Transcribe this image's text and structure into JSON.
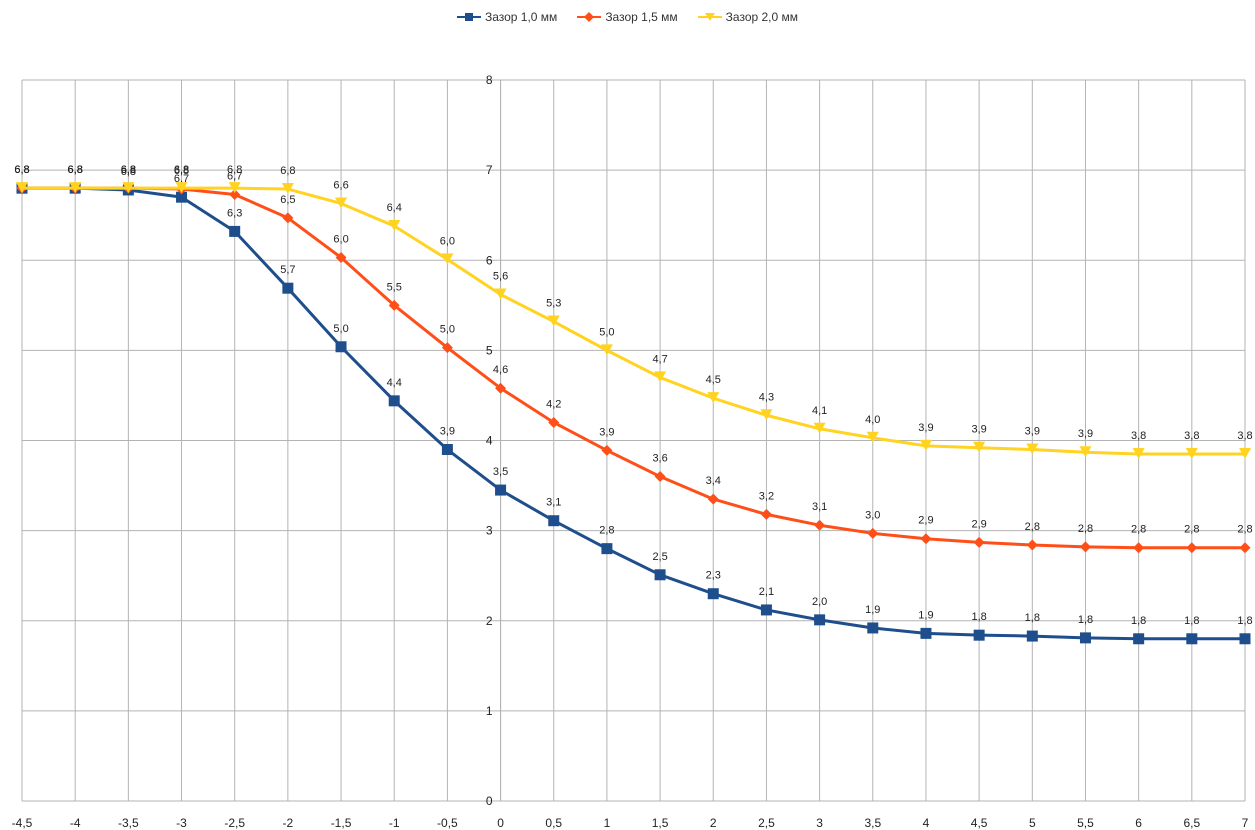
{
  "chart_data": {
    "type": "line",
    "x": [
      -4.5,
      -4,
      -3.5,
      -3,
      -2.5,
      -2,
      -1.5,
      -1,
      -0.5,
      0,
      0.5,
      1,
      1.5,
      2,
      2.5,
      3,
      3.5,
      4,
      4.5,
      5,
      5.5,
      6,
      6.5,
      7
    ],
    "x_tick_labels": [
      "-4,5",
      "-4",
      "-3,5",
      "-3",
      "-2,5",
      "-2",
      "-1,5",
      "-1",
      "-0,5",
      "0",
      "0,5",
      "1",
      "1,5",
      "2",
      "2,5",
      "3",
      "3,5",
      "4",
      "4,5",
      "5",
      "5,5",
      "6",
      "6,5",
      "7"
    ],
    "y_tick_labels": [
      "0",
      "1",
      "2",
      "3",
      "4",
      "5",
      "6",
      "7",
      "8"
    ],
    "xlim": [
      -4.5,
      7
    ],
    "ylim": [
      0,
      8
    ],
    "grid": true,
    "legend_position": "top",
    "series": [
      {
        "name": "Зазор 1,0 мм",
        "color": "#1f4e8c",
        "marker": "square",
        "values": [
          6.8,
          6.8,
          6.78,
          6.7,
          6.32,
          5.69,
          5.04,
          4.44,
          3.9,
          3.45,
          3.11,
          2.8,
          2.51,
          2.3,
          2.12,
          2.01,
          1.92,
          1.86,
          1.84,
          1.83,
          1.81,
          1.8,
          1.8,
          1.8
        ],
        "labels": [
          "6,8",
          "6,8",
          "6,8",
          "6,7",
          "6,3",
          "5,7",
          "5,0",
          "4,4",
          "3,9",
          "3,5",
          "3,1",
          "2,8",
          "2,5",
          "2,3",
          "2,1",
          "2,0",
          "1,9",
          "1,9",
          "1,8",
          "1,8",
          "1,8",
          "1,8",
          "1,8",
          "1,8"
        ]
      },
      {
        "name": "Зазор 1,5 мм",
        "color": "#ff4f19",
        "marker": "diamond",
        "values": [
          6.8,
          6.8,
          6.8,
          6.79,
          6.73,
          6.47,
          6.03,
          5.5,
          5.03,
          4.58,
          4.2,
          3.89,
          3.6,
          3.35,
          3.18,
          3.06,
          2.97,
          2.91,
          2.87,
          2.84,
          2.82,
          2.81,
          2.81,
          2.81
        ],
        "labels": [
          "6,8",
          "6,8",
          "6,8",
          "6,8",
          "6,7",
          "6,5",
          "6,0",
          "5,5",
          "5,0",
          "4,6",
          "4,2",
          "3,9",
          "3,6",
          "3,4",
          "3,2",
          "3,1",
          "3,0",
          "2,9",
          "2,9",
          "2,8",
          "2,8",
          "2,8",
          "2,8",
          "2,8"
        ]
      },
      {
        "name": "Зазор 2,0 мм",
        "color": "#ffd320",
        "marker": "triangle-down",
        "values": [
          6.8,
          6.8,
          6.8,
          6.8,
          6.8,
          6.79,
          6.63,
          6.38,
          6.01,
          5.62,
          5.32,
          5.0,
          4.7,
          4.47,
          4.28,
          4.13,
          4.03,
          3.94,
          3.92,
          3.9,
          3.87,
          3.85,
          3.85,
          3.85
        ],
        "labels": [
          "6,8",
          "6,8",
          "6,8",
          "6,8",
          "6,8",
          "6,8",
          "6,6",
          "6,4",
          "6,0",
          "5,6",
          "5,3",
          "5,0",
          "4,7",
          "4,5",
          "4,3",
          "4,1",
          "4,0",
          "3,9",
          "3,9",
          "3,9",
          "3,9",
          "3,8",
          "3,8",
          "3,8"
        ]
      }
    ]
  }
}
